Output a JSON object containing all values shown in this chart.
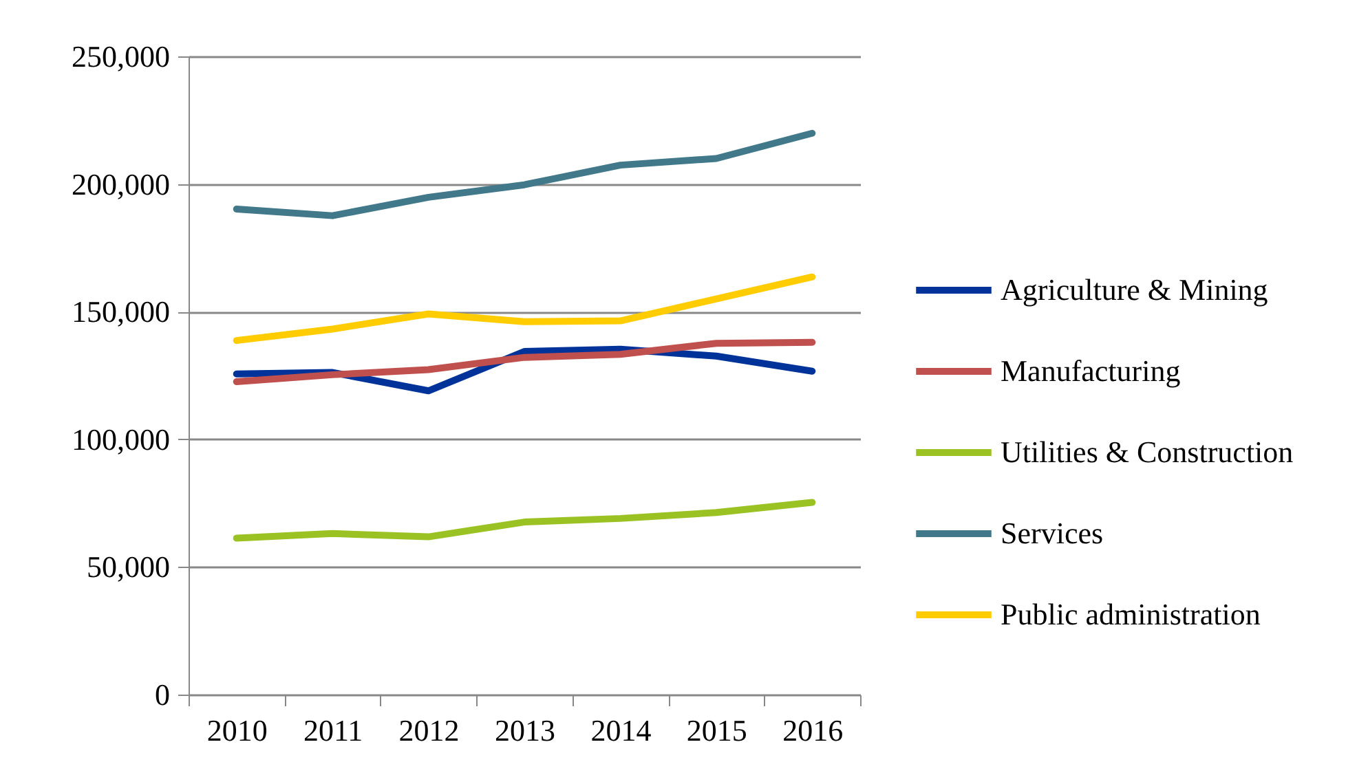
{
  "chart_data": {
    "type": "line",
    "categories": [
      "2010",
      "2011",
      "2012",
      "2013",
      "2014",
      "2015",
      "2016"
    ],
    "series": [
      {
        "name": "Agriculture & Mining",
        "color": "#003399",
        "values": [
          125600,
          126200,
          119000,
          134400,
          135300,
          132600,
          126700
        ]
      },
      {
        "name": "Manufacturing",
        "color": "#c0504d",
        "values": [
          122600,
          125300,
          127300,
          132100,
          133300,
          137600,
          138000
        ]
      },
      {
        "name": "Utilities & Construction",
        "color": "#9bc223",
        "values": [
          61300,
          63100,
          61800,
          67600,
          69000,
          71300,
          75300
        ]
      },
      {
        "name": "Services",
        "color": "#41788a",
        "values": [
          190200,
          187600,
          194800,
          199700,
          207400,
          210000,
          219900
        ]
      },
      {
        "name": "Public administration",
        "color": "#ffcc00",
        "values": [
          138700,
          143200,
          149100,
          146100,
          146400,
          155000,
          163600
        ]
      }
    ],
    "ylim": [
      0,
      250000
    ],
    "yticks": [
      {
        "value": 0,
        "label": "0"
      },
      {
        "value": 50000,
        "label": "50,000"
      },
      {
        "value": 100000,
        "label": "100,000"
      },
      {
        "value": 150000,
        "label": "150,000"
      },
      {
        "value": 200000,
        "label": "200,000"
      },
      {
        "value": 250000,
        "label": "250,000"
      }
    ],
    "grid": "y",
    "legend": "right",
    "marker": "none",
    "line_style": "solid"
  }
}
